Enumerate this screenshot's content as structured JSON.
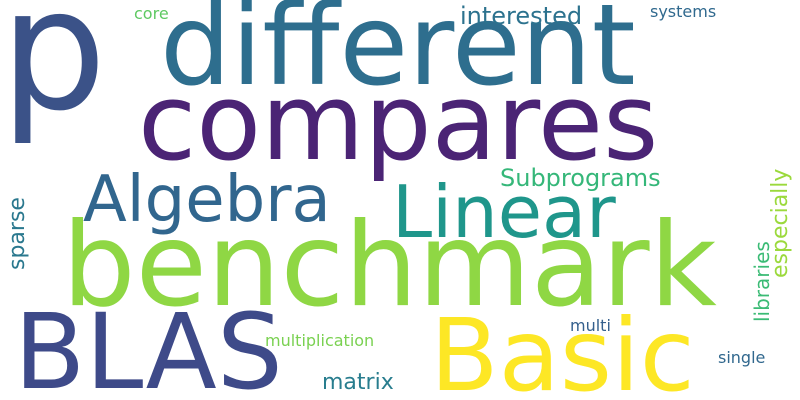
{
  "words": {
    "p": {
      "text": "p",
      "color": "#3b5288"
    },
    "different": {
      "text": "different",
      "color": "#2e6e8e"
    },
    "compares": {
      "text": "compares",
      "color": "#4b2475"
    },
    "algebra": {
      "text": "Algebra",
      "color": "#31668e"
    },
    "linear": {
      "text": "Linear",
      "color": "#1f968b"
    },
    "benchmark": {
      "text": "benchmark",
      "color": "#8fd744"
    },
    "blas": {
      "text": "BLAS",
      "color": "#3e4a89"
    },
    "basic": {
      "text": "Basic",
      "color": "#fde725"
    },
    "interested": {
      "text": "interested",
      "color": "#2c728e"
    },
    "systems": {
      "text": "systems",
      "color": "#30698e"
    },
    "core": {
      "text": "core",
      "color": "#5ec962"
    },
    "subprograms": {
      "text": "Subprograms",
      "color": "#35b779"
    },
    "multiplication": {
      "text": "multiplication",
      "color": "#7ad151"
    },
    "multi": {
      "text": "multi",
      "color": "#35608d"
    },
    "matrix": {
      "text": "matrix",
      "color": "#287d8e"
    },
    "single": {
      "text": "single",
      "color": "#31688e"
    },
    "sparse": {
      "text": "sparse",
      "color": "#2a788e"
    },
    "libraries": {
      "text": "libraries",
      "color": "#3bbb75"
    },
    "especially": {
      "text": "especially",
      "color": "#9bd93c"
    }
  }
}
